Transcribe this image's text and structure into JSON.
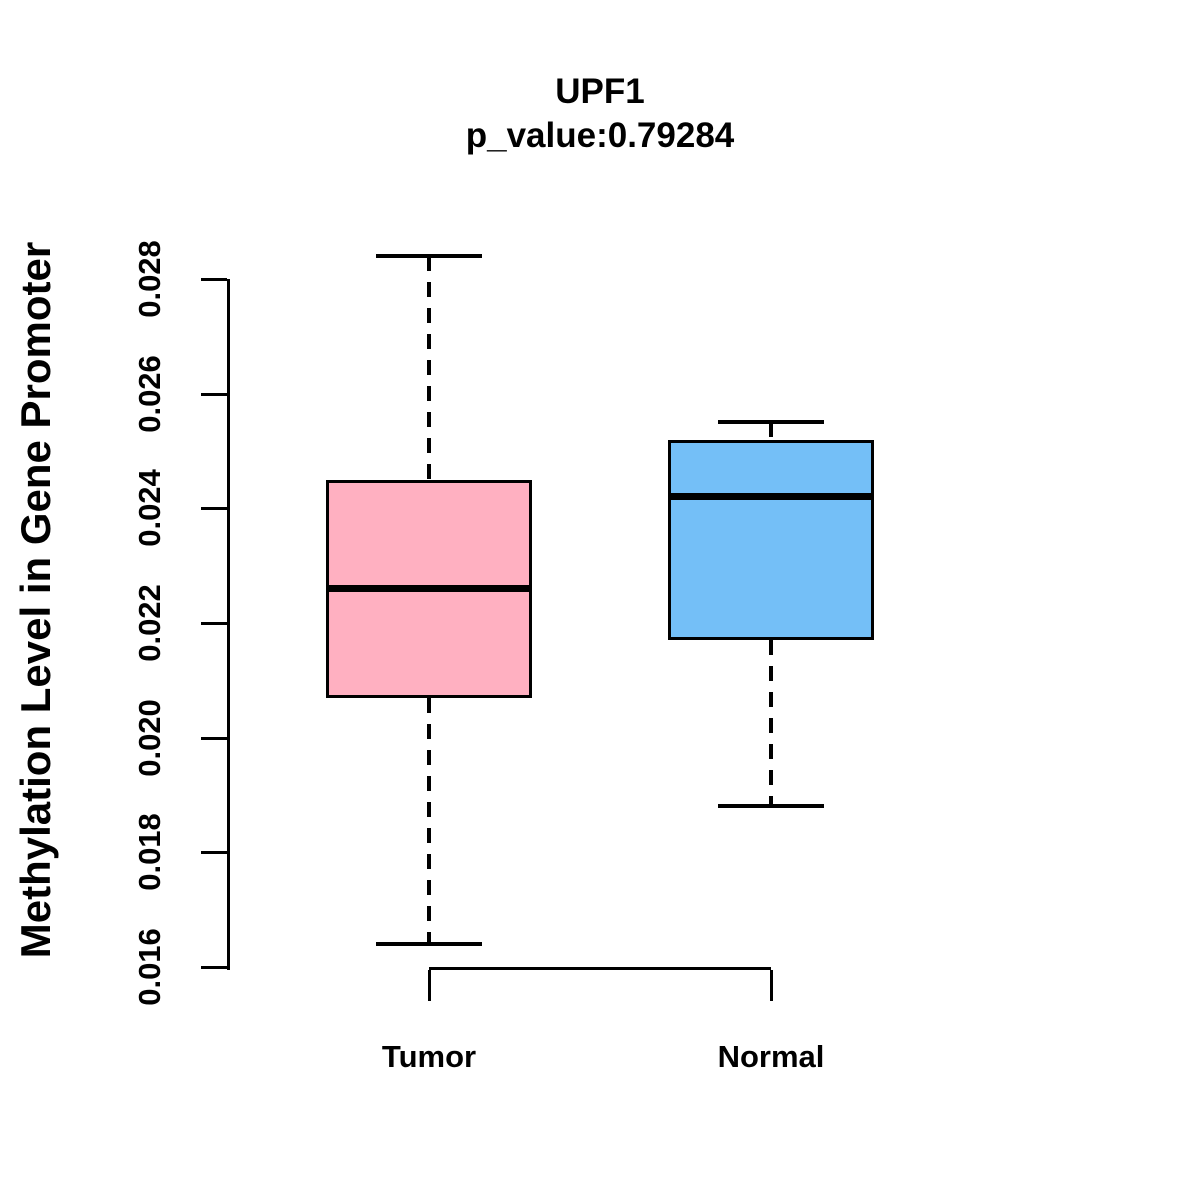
{
  "title": {
    "line1": "UPF1",
    "line2": "p_value:0.79284"
  },
  "chart_data": {
    "type": "boxplot",
    "title": "UPF1",
    "subtitle": "p_value:0.79284",
    "ylabel": "Methylation Level in Gene Promoter",
    "ylim": [
      0.016,
      0.028
    ],
    "yticks": [
      0.016,
      0.018,
      0.02,
      0.022,
      0.024,
      0.026,
      0.028
    ],
    "ytick_labels": [
      "0.016",
      "0.018",
      "0.020",
      "0.022",
      "0.024",
      "0.026",
      "0.028"
    ],
    "categories": [
      "Tumor",
      "Normal"
    ],
    "grid": false,
    "legend": "none",
    "series": [
      {
        "name": "Tumor",
        "color": "#FFB0C1",
        "whisker_low": 0.0164,
        "q1": 0.0207,
        "median": 0.0226,
        "q3": 0.0245,
        "whisker_high": 0.0284
      },
      {
        "name": "Normal",
        "color": "#74BFF7",
        "whisker_low": 0.0188,
        "q1": 0.0217,
        "median": 0.0242,
        "q3": 0.0252,
        "whisker_high": 0.0255
      }
    ]
  },
  "colors": {
    "tumor_fill": "#FFB0C1",
    "normal_fill": "#74BFF7",
    "line": "#000000",
    "background": "#FFFFFF"
  }
}
